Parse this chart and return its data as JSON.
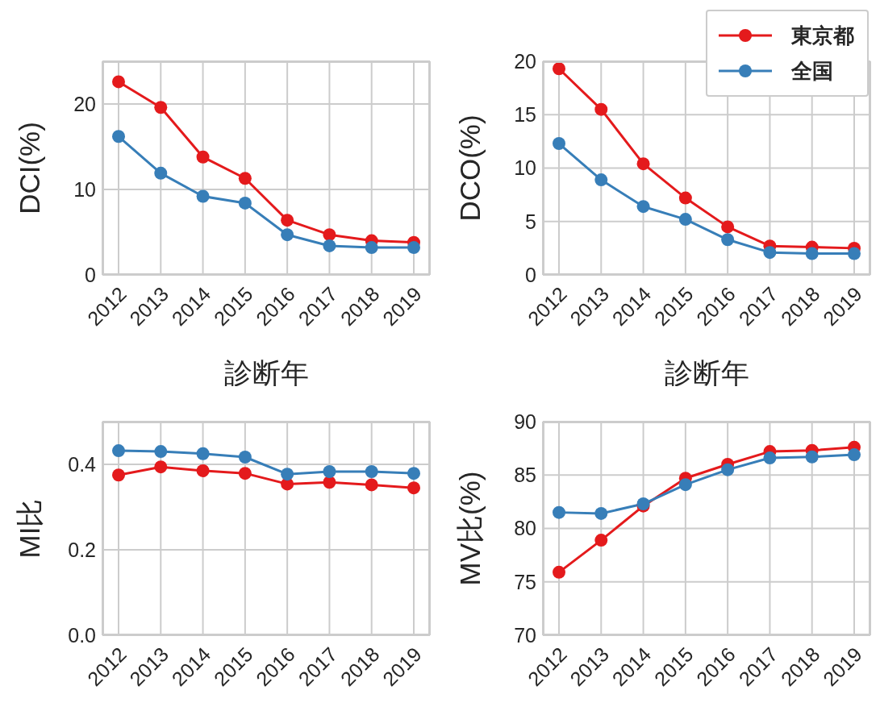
{
  "chart_data": [
    {
      "type": "line",
      "categories": [
        "2012",
        "2013",
        "2014",
        "2015",
        "2016",
        "2017",
        "2018",
        "2019"
      ],
      "xlabel": "診断年",
      "ylabel": "DCI(%)",
      "ylim": [
        0,
        25
      ],
      "yticks": [
        0,
        10,
        20
      ],
      "grid": true,
      "marker": "circle",
      "legend": false,
      "series": [
        {
          "color": "#e41a1c",
          "values": [
            22.6,
            19.6,
            13.8,
            11.3,
            6.4,
            4.7,
            4.0,
            3.8
          ]
        },
        {
          "color": "#377eb8",
          "values": [
            16.2,
            11.9,
            9.2,
            8.4,
            4.7,
            3.4,
            3.2,
            3.2
          ]
        }
      ]
    },
    {
      "type": "line",
      "categories": [
        "2012",
        "2013",
        "2014",
        "2015",
        "2016",
        "2017",
        "2018",
        "2019"
      ],
      "xlabel": "診断年",
      "ylabel": "DCO(%)",
      "ylim": [
        0,
        20
      ],
      "yticks": [
        0,
        5,
        10,
        15,
        20
      ],
      "grid": true,
      "marker": "circle",
      "legend": "top right",
      "series": [
        {
          "name": "東京都",
          "color": "#e41a1c",
          "values": [
            19.3,
            15.5,
            10.4,
            7.2,
            4.5,
            2.7,
            2.6,
            2.5
          ]
        },
        {
          "name": "全国",
          "color": "#377eb8",
          "values": [
            12.3,
            8.9,
            6.4,
            5.2,
            3.3,
            2.1,
            2.0,
            2.0
          ]
        }
      ]
    },
    {
      "type": "line",
      "categories": [
        "2012",
        "2013",
        "2014",
        "2015",
        "2016",
        "2017",
        "2018",
        "2019"
      ],
      "ylabel": "MI比",
      "ylim": [
        0,
        0.5
      ],
      "yticks": [
        {
          "value": 0,
          "label": "0.0"
        },
        0.2,
        0.4
      ],
      "grid": true,
      "marker": "circle",
      "legend": false,
      "series": [
        {
          "color": "#e41a1c",
          "values": [
            0.375,
            0.394,
            0.385,
            0.379,
            0.354,
            0.358,
            0.352,
            0.345
          ]
        },
        {
          "color": "#377eb8",
          "values": [
            0.432,
            0.43,
            0.425,
            0.417,
            0.377,
            0.383,
            0.383,
            0.379
          ]
        }
      ]
    },
    {
      "type": "line",
      "categories": [
        "2012",
        "2013",
        "2014",
        "2015",
        "2016",
        "2017",
        "2018",
        "2019"
      ],
      "ylabel": "MV比(%)",
      "ylim": [
        70,
        90
      ],
      "yticks": [
        70,
        75,
        80,
        85,
        90
      ],
      "grid": true,
      "marker": "circle",
      "legend": false,
      "series": [
        {
          "color": "#e41a1c",
          "values": [
            75.9,
            78.9,
            82.1,
            84.7,
            86.0,
            87.2,
            87.3,
            87.6
          ]
        },
        {
          "color": "#377eb8",
          "values": [
            81.5,
            81.4,
            82.3,
            84.1,
            85.5,
            86.6,
            86.7,
            86.9
          ]
        }
      ]
    }
  ]
}
